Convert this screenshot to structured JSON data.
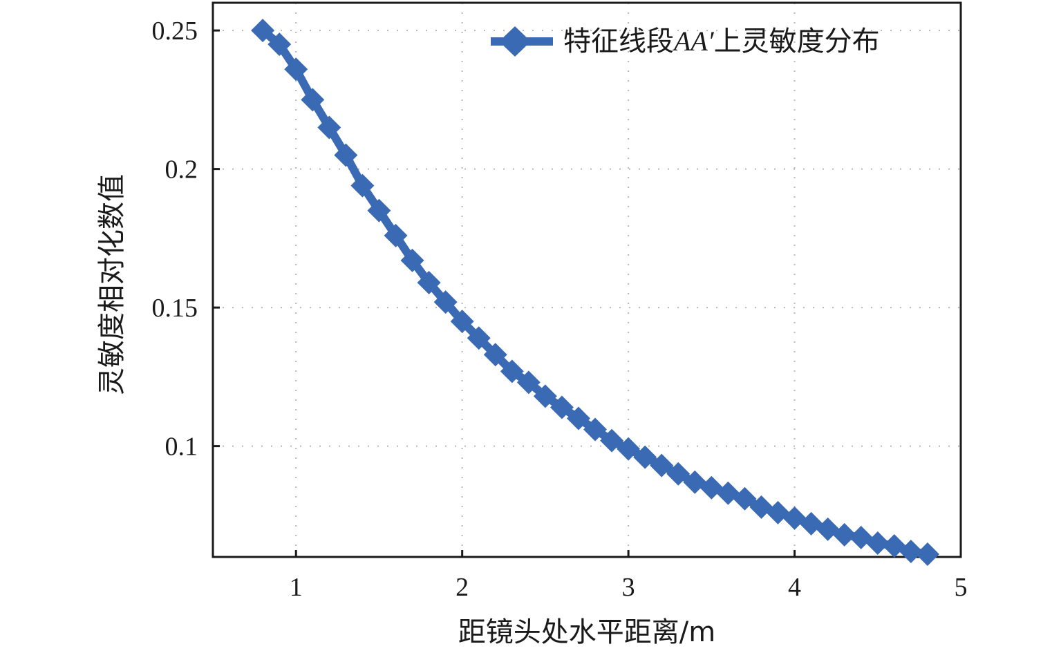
{
  "chart_data": {
    "type": "line",
    "xlabel": "距镜头处水平距离/m",
    "ylabel": "灵敏度相对化数值",
    "xlim": [
      0.5,
      5
    ],
    "ylim": [
      0.06,
      0.26
    ],
    "xticks": [
      "1",
      "2",
      "3",
      "4",
      "5"
    ],
    "yticks": [
      "0.1",
      "0.15",
      "0.2",
      "0.25"
    ],
    "grid": "dotted",
    "legend_position": "top-right",
    "series": [
      {
        "name": "特征线段AA′上灵敏度分布",
        "name_parts": {
          "prefix": "特征线段",
          "italic": "AA′",
          "suffix": "上灵敏度分布"
        },
        "color": "#3a6ab3",
        "marker": "diamond",
        "x": [
          0.8,
          0.9,
          1.0,
          1.1,
          1.2,
          1.3,
          1.4,
          1.5,
          1.6,
          1.7,
          1.8,
          1.9,
          2.0,
          2.1,
          2.2,
          2.3,
          2.4,
          2.5,
          2.6,
          2.7,
          2.8,
          2.9,
          3.0,
          3.1,
          3.2,
          3.3,
          3.4,
          3.5,
          3.6,
          3.7,
          3.8,
          3.9,
          4.0,
          4.1,
          4.2,
          4.3,
          4.4,
          4.5,
          4.6,
          4.7,
          4.8
        ],
        "y": [
          0.25,
          0.245,
          0.236,
          0.225,
          0.215,
          0.205,
          0.194,
          0.185,
          0.176,
          0.167,
          0.159,
          0.152,
          0.145,
          0.139,
          0.133,
          0.127,
          0.123,
          0.118,
          0.114,
          0.11,
          0.106,
          0.102,
          0.099,
          0.096,
          0.093,
          0.09,
          0.087,
          0.085,
          0.083,
          0.081,
          0.078,
          0.076,
          0.074,
          0.072,
          0.07,
          0.068,
          0.067,
          0.065,
          0.064,
          0.062,
          0.061
        ]
      }
    ]
  }
}
